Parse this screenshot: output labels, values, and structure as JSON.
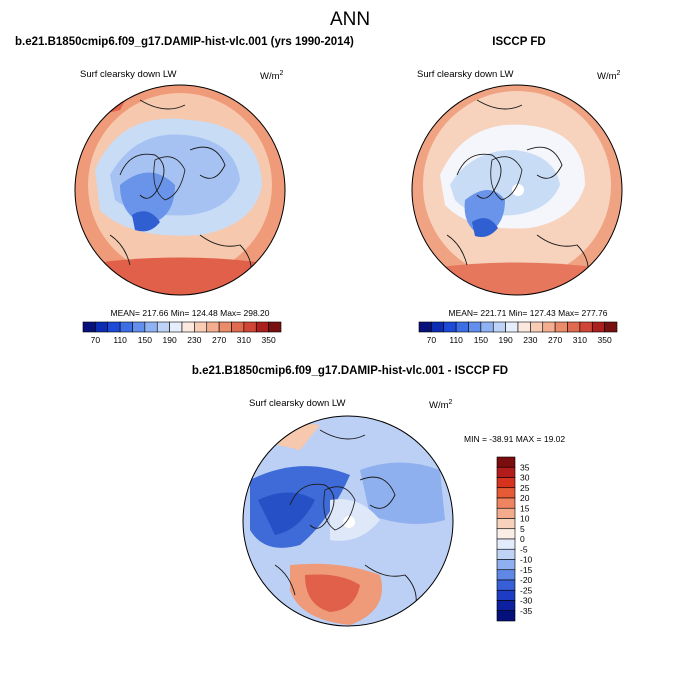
{
  "page_title": "ANN",
  "colors": {
    "map_blue_dark": "#2f5fd0",
    "map_blue_mid": "#8fb0ee",
    "map_blue_light": "#c9dcf6",
    "map_white": "#f4f6fb",
    "map_orange_light": "#f6c8ad",
    "map_orange_mid": "#ef9a78",
    "map_red": "#e0604a",
    "land_outline": "#1a1a1a"
  },
  "chart_data": [
    {
      "type": "heatmap",
      "projection": "north-polar-stereographic",
      "title": "b.e21.B1850cmip6.f09_g17.DAMIP-hist-vlc.001 (yrs 1990-2014)",
      "variable": "Surf clearsky down LW",
      "units_base": "W/m",
      "units_exp": "2",
      "stats_text": "MEAN= 217.66  Min= 124.48  Max= 298.20",
      "stats": {
        "mean": 217.66,
        "min": 124.48,
        "max": 298.2
      },
      "colorbar": {
        "levels": [
          70,
          90,
          110,
          130,
          150,
          170,
          190,
          210,
          230,
          250,
          270,
          290,
          310,
          330,
          350
        ],
        "tick_labels": [
          "70",
          "110",
          "150",
          "190",
          "230",
          "270",
          "310",
          "350"
        ],
        "colors": [
          "#08107a",
          "#0c2cb4",
          "#1d4bd8",
          "#3c6fe6",
          "#6390ee",
          "#8fb2f4",
          "#bed3f8",
          "#e6eefb",
          "#fbe9df",
          "#f7cdb6",
          "#f2ae8f",
          "#ea8b69",
          "#e06a4d",
          "#cf4637",
          "#ab1f1e",
          "#780f10"
        ]
      }
    },
    {
      "type": "heatmap",
      "projection": "north-polar-stereographic",
      "title": "ISCCP FD",
      "variable": "Surf clearsky down LW",
      "units_base": "W/m",
      "units_exp": "2",
      "stats_text": "MEAN= 221.71  Min= 127.43  Max= 277.76",
      "stats": {
        "mean": 221.71,
        "min": 127.43,
        "max": 277.76
      },
      "colorbar": {
        "levels": [
          70,
          90,
          110,
          130,
          150,
          170,
          190,
          210,
          230,
          250,
          270,
          290,
          310,
          330,
          350
        ],
        "tick_labels": [
          "70",
          "110",
          "150",
          "190",
          "230",
          "270",
          "310",
          "350"
        ],
        "colors": [
          "#08107a",
          "#0c2cb4",
          "#1d4bd8",
          "#3c6fe6",
          "#6390ee",
          "#8fb2f4",
          "#bed3f8",
          "#e6eefb",
          "#fbe9df",
          "#f7cdb6",
          "#f2ae8f",
          "#ea8b69",
          "#e06a4d",
          "#cf4637",
          "#ab1f1e",
          "#780f10"
        ]
      }
    },
    {
      "type": "heatmap",
      "projection": "north-polar-stereographic",
      "title": "b.e21.B1850cmip6.f09_g17.DAMIP-hist-vlc.001 - ISCCP FD",
      "variable": "Surf clearsky down LW",
      "units_base": "W/m",
      "units_exp": "2",
      "stats_text": "MIN = -38.91 MAX =  19.02",
      "stats": {
        "min": -38.91,
        "max": 19.02
      },
      "colorbar": {
        "levels": [
          -35,
          -30,
          -25,
          -20,
          -15,
          -10,
          -5,
          0,
          5,
          10,
          15,
          20,
          25,
          30,
          35
        ],
        "tick_labels": [
          "35",
          "30",
          "25",
          "20",
          "15",
          "10",
          "5",
          "0",
          "-5",
          "-10",
          "-15",
          "-20",
          "-25",
          "-30",
          "-35"
        ],
        "colors": [
          "#7a0d0d",
          "#b21c1a",
          "#d6331f",
          "#e65a36",
          "#ee8460",
          "#f4ab8c",
          "#f8d1bd",
          "#fbeee7",
          "#e3ecfb",
          "#bfd3f7",
          "#8fb0f0",
          "#5f88e6",
          "#3760d8",
          "#1d3cc4",
          "#0c20a0",
          "#05107a"
        ]
      }
    }
  ]
}
